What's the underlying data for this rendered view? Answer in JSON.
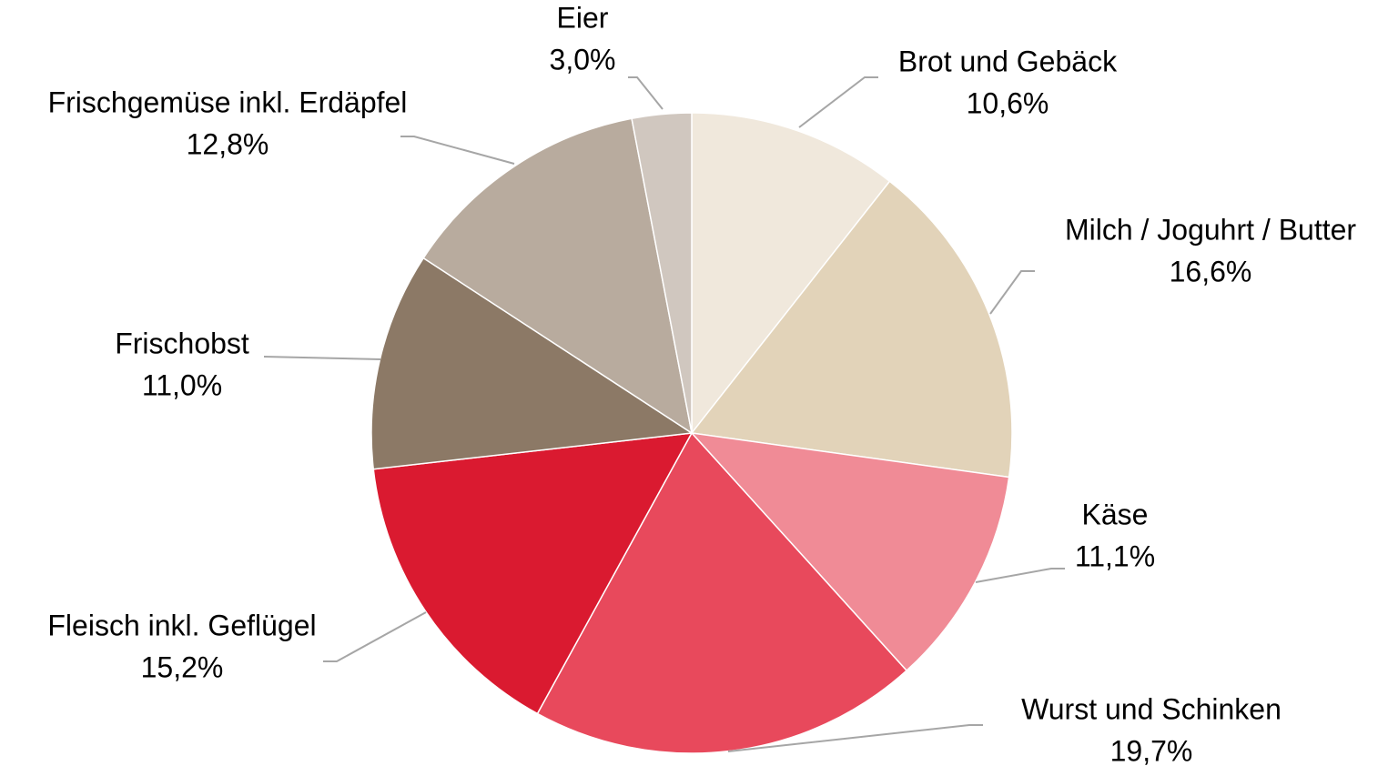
{
  "chart_data": {
    "type": "pie",
    "categories": [
      "Brot und Gebäck",
      "Milch / Joguhrt / Butter",
      "Käse",
      "Wurst und Schinken",
      "Fleisch inkl. Geflügel",
      "Frischobst",
      "Frischgemüse inkl. Erdäpfel",
      "Eier"
    ],
    "values": [
      10.6,
      16.6,
      11.1,
      19.7,
      15.2,
      11.0,
      12.8,
      3.0
    ],
    "value_labels": [
      "10,6%",
      "16,6%",
      "11,1%",
      "19,7%",
      "15,2%",
      "11,0%",
      "12,8%",
      "3,0%"
    ],
    "colors": [
      "#f0e8dc",
      "#e2d3b9",
      "#f08b96",
      "#e8495c",
      "#da1a30",
      "#8c7966",
      "#b8ab9e",
      "#d0c7bf"
    ]
  }
}
